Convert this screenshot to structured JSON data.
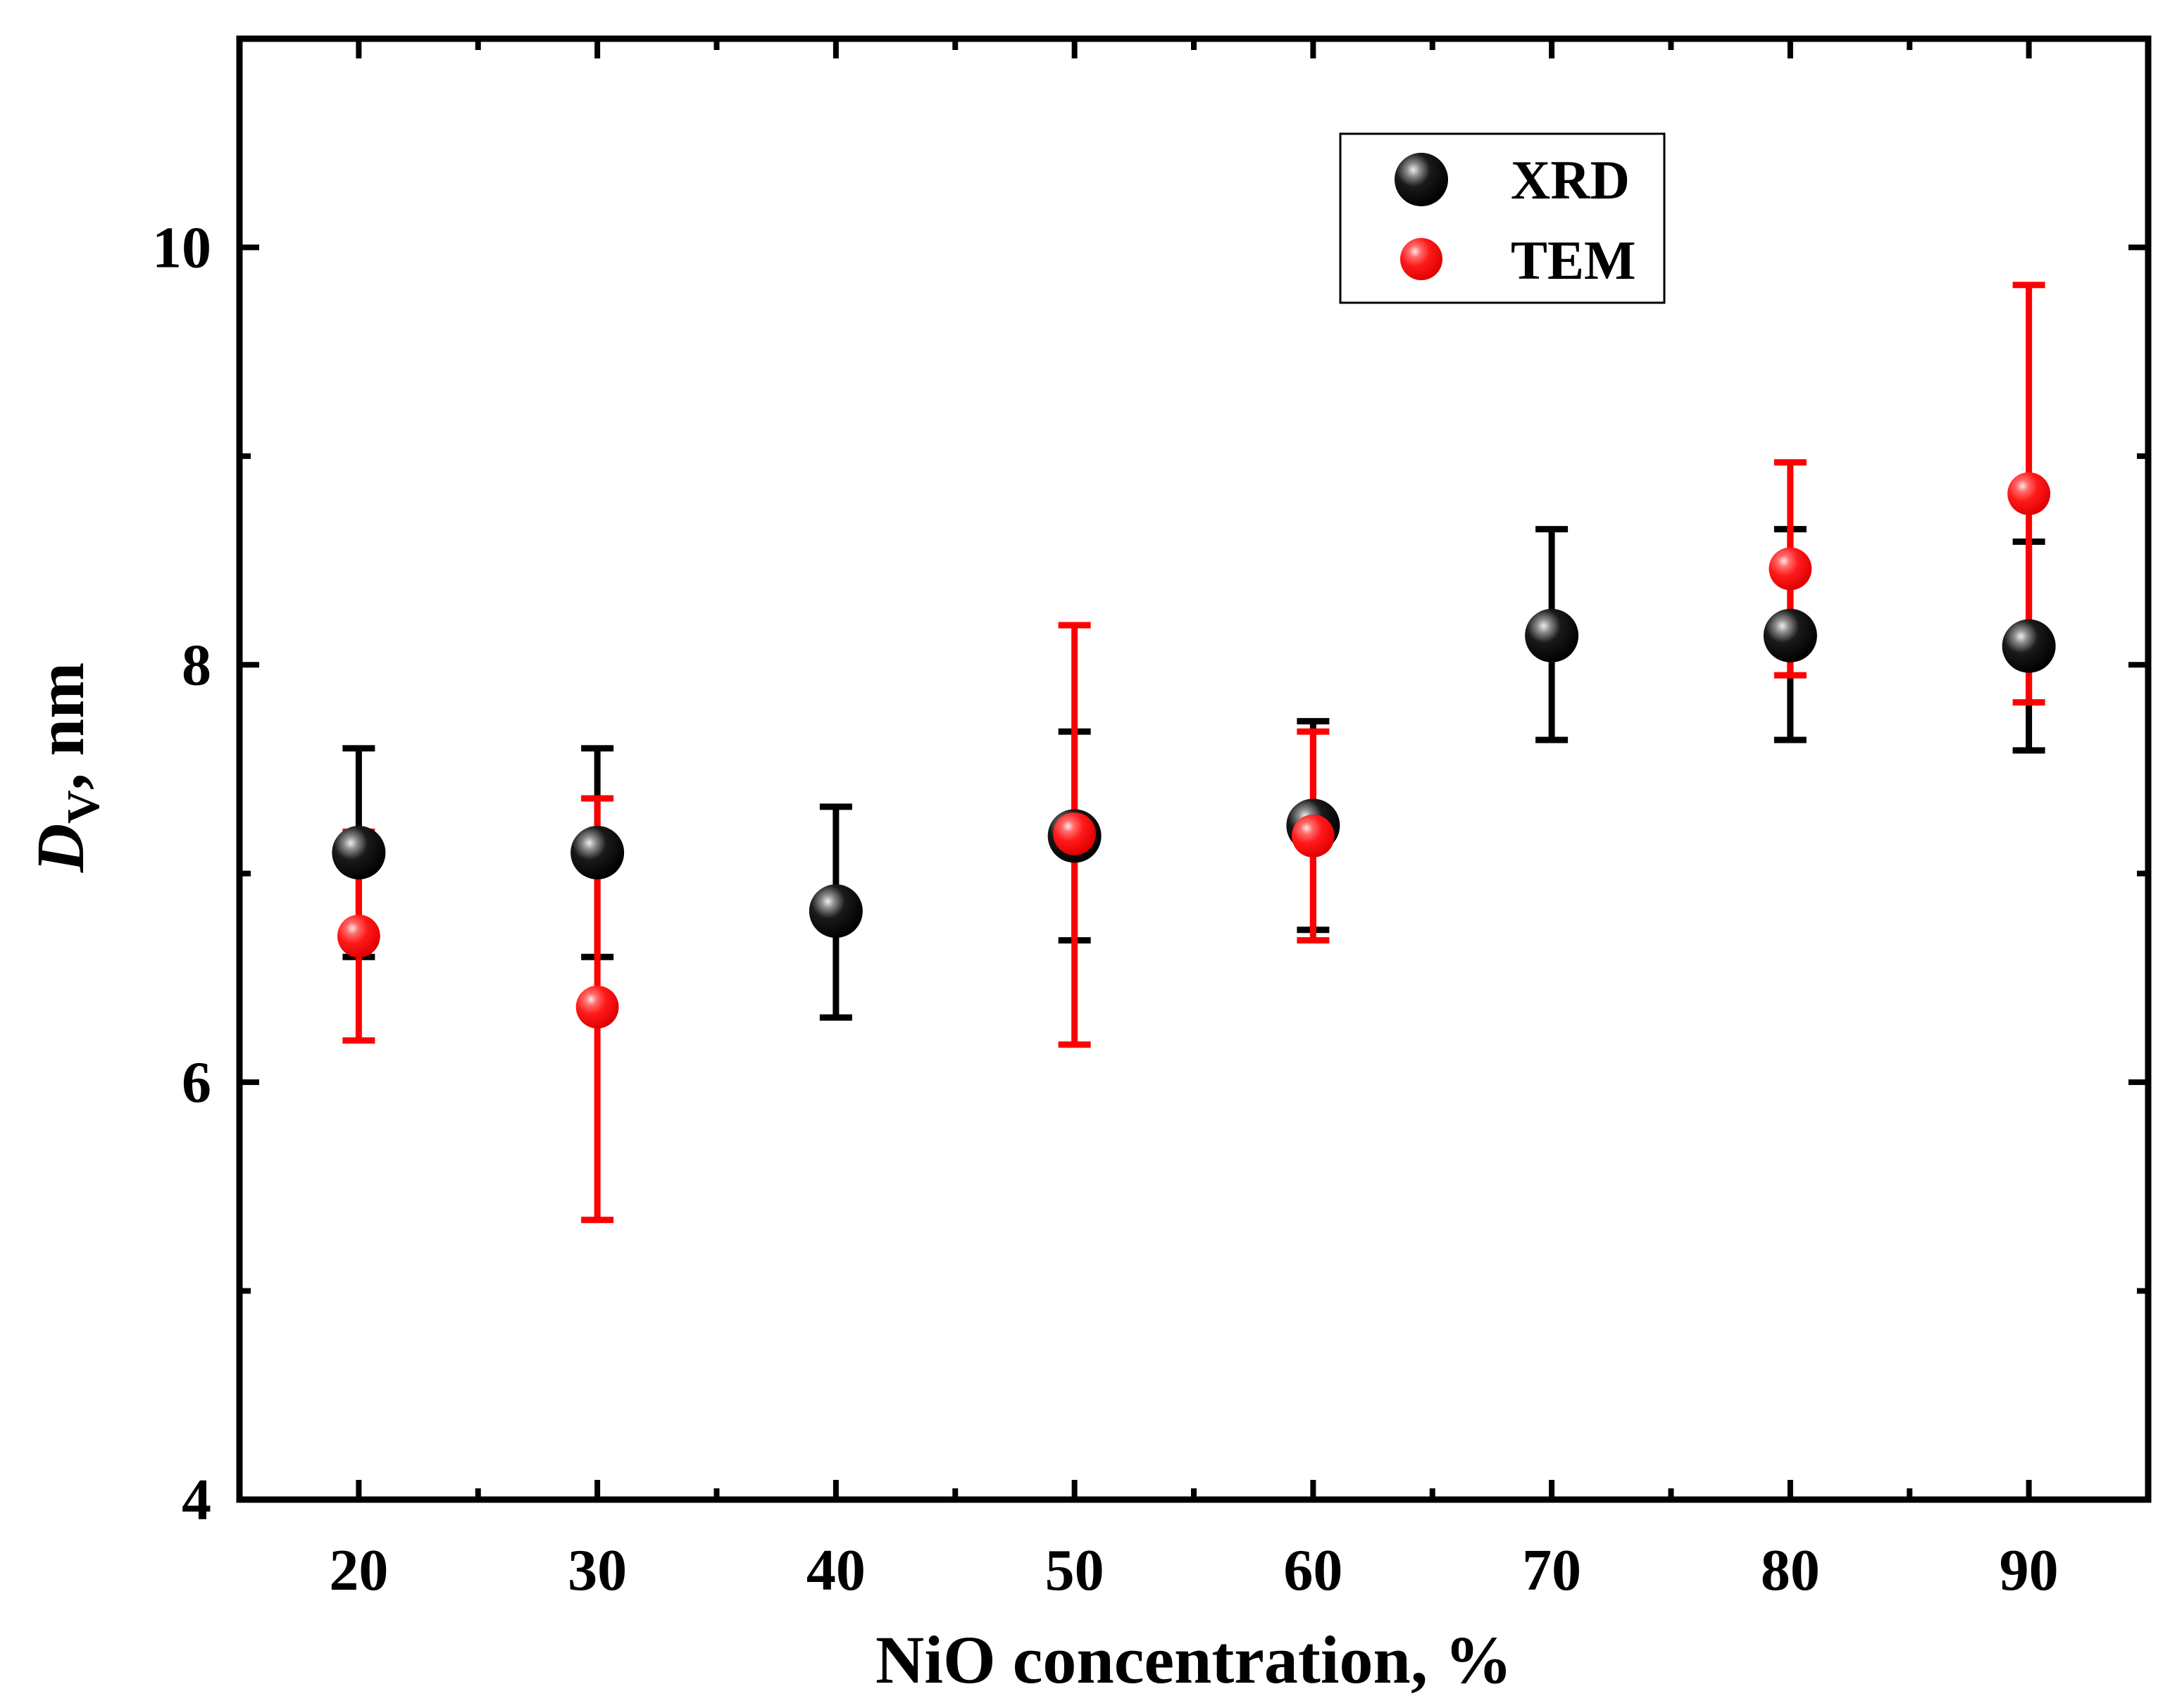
{
  "chart_data": {
    "type": "scatter",
    "title": "",
    "xlabel": "NiO concentration, %",
    "ylabel": {
      "main": "D",
      "sub": "V",
      "rest": ", nm"
    },
    "xlim": [
      15,
      95
    ],
    "ylim": [
      4,
      11
    ],
    "x_ticks": [
      20,
      30,
      40,
      50,
      60,
      70,
      80,
      90
    ],
    "x_tick_labels": [
      "20",
      "30",
      "40",
      "50",
      "60",
      "70",
      "80",
      "90"
    ],
    "x_minor_ticks": [
      25,
      35,
      45,
      55,
      65,
      75,
      85
    ],
    "y_ticks": [
      4,
      6,
      8,
      10
    ],
    "y_tick_labels": [
      "4",
      "6",
      "8",
      "10"
    ],
    "y_minor_ticks": [
      5,
      7,
      9
    ],
    "grid": false,
    "legend_position": "top-right",
    "series": [
      {
        "name": "XRD",
        "color": "#000000",
        "highlight": "#d9d9d9",
        "marker_scale": 1.0,
        "points": [
          {
            "x": 20,
            "y": 7.1,
            "err_low": 6.6,
            "err_high": 7.6
          },
          {
            "x": 30,
            "y": 7.1,
            "err_low": 6.6,
            "err_high": 7.6
          },
          {
            "x": 40,
            "y": 6.82,
            "err_low": 6.31,
            "err_high": 7.32
          },
          {
            "x": 50,
            "y": 7.18,
            "err_low": 6.68,
            "err_high": 7.68
          },
          {
            "x": 60,
            "y": 7.23,
            "err_low": 6.73,
            "err_high": 7.73
          },
          {
            "x": 70,
            "y": 8.14,
            "err_low": 7.64,
            "err_high": 8.65
          },
          {
            "x": 80,
            "y": 8.14,
            "err_low": 7.64,
            "err_high": 8.65
          },
          {
            "x": 90,
            "y": 8.09,
            "err_low": 7.59,
            "err_high": 8.59
          }
        ]
      },
      {
        "name": "TEM",
        "color": "#ff0000",
        "highlight": "#ffd6d6",
        "marker_scale": 0.8,
        "points": [
          {
            "x": 20,
            "y": 6.7,
            "err_low": 6.2,
            "err_high": 7.2
          },
          {
            "x": 30,
            "y": 6.36,
            "err_low": 5.34,
            "err_high": 7.36
          },
          {
            "x": 50,
            "y": 7.19,
            "err_low": 6.18,
            "err_high": 8.19
          },
          {
            "x": 60,
            "y": 7.18,
            "err_low": 6.68,
            "err_high": 7.68
          },
          {
            "x": 80,
            "y": 8.46,
            "err_low": 7.95,
            "err_high": 8.97
          },
          {
            "x": 90,
            "y": 8.82,
            "err_low": 7.82,
            "err_high": 9.82
          }
        ]
      }
    ]
  }
}
